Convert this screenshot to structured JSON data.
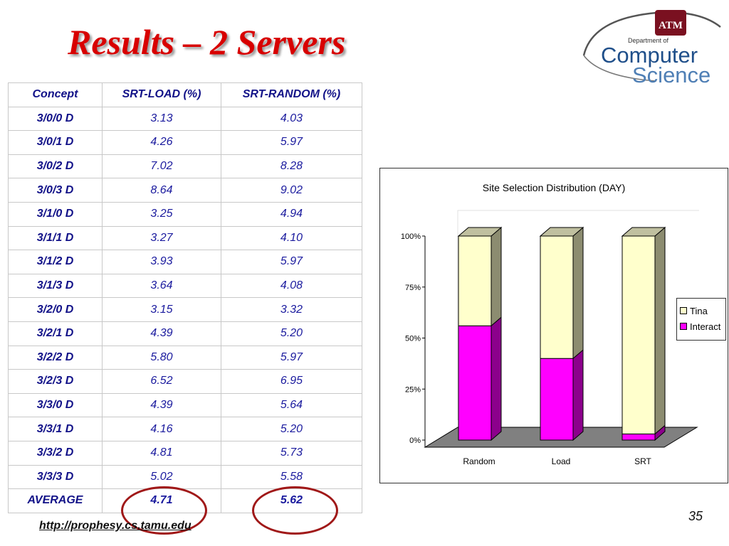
{
  "slide": {
    "title": "Results – 2 Servers",
    "footer_url": "http://prophesy.cs.tamu.edu",
    "page_number": "35"
  },
  "logo": {
    "line1": "Department of",
    "line2": "Computer",
    "line3": "Science",
    "emblem_letters": "ATM"
  },
  "table": {
    "headers": [
      "Concept",
      "SRT-LOAD (%)",
      "SRT-RANDOM (%)"
    ],
    "rows": [
      [
        "3/0/0 D",
        "3.13",
        "4.03"
      ],
      [
        "3/0/1 D",
        "4.26",
        "5.97"
      ],
      [
        "3/0/2 D",
        "7.02",
        "8.28"
      ],
      [
        "3/0/3 D",
        "8.64",
        "9.02"
      ],
      [
        "3/1/0 D",
        "3.25",
        "4.94"
      ],
      [
        "3/1/1 D",
        "3.27",
        "4.10"
      ],
      [
        "3/1/2 D",
        "3.93",
        "5.97"
      ],
      [
        "3/1/3 D",
        "3.64",
        "4.08"
      ],
      [
        "3/2/0 D",
        "3.15",
        "3.32"
      ],
      [
        "3/2/1 D",
        "4.39",
        "5.20"
      ],
      [
        "3/2/2 D",
        "5.80",
        "5.97"
      ],
      [
        "3/2/3 D",
        "6.52",
        "6.95"
      ],
      [
        "3/3/0 D",
        "4.39",
        "5.64"
      ],
      [
        "3/3/1 D",
        "4.16",
        "5.20"
      ],
      [
        "3/3/2 D",
        "4.81",
        "5.73"
      ],
      [
        "3/3/3 D",
        "5.02",
        "5.58"
      ],
      [
        "AVERAGE",
        "4.71",
        "5.62"
      ]
    ]
  },
  "chart_data": {
    "type": "bar",
    "stacked": true,
    "three_d": true,
    "title": "Site Selection Distribution (DAY)",
    "categories": [
      "Random",
      "Load",
      "SRT"
    ],
    "series": [
      {
        "name": "Interact",
        "values": [
          56,
          40,
          3
        ],
        "color": "#ff00ff"
      },
      {
        "name": "Tina",
        "values": [
          44,
          60,
          97
        ],
        "color": "#ffffcc"
      }
    ],
    "ylim": [
      0,
      100
    ],
    "y_ticks": [
      "0%",
      "25%",
      "50%",
      "75%",
      "100%"
    ],
    "legend_position": "right",
    "grid": false,
    "floor_color": "#808080"
  }
}
